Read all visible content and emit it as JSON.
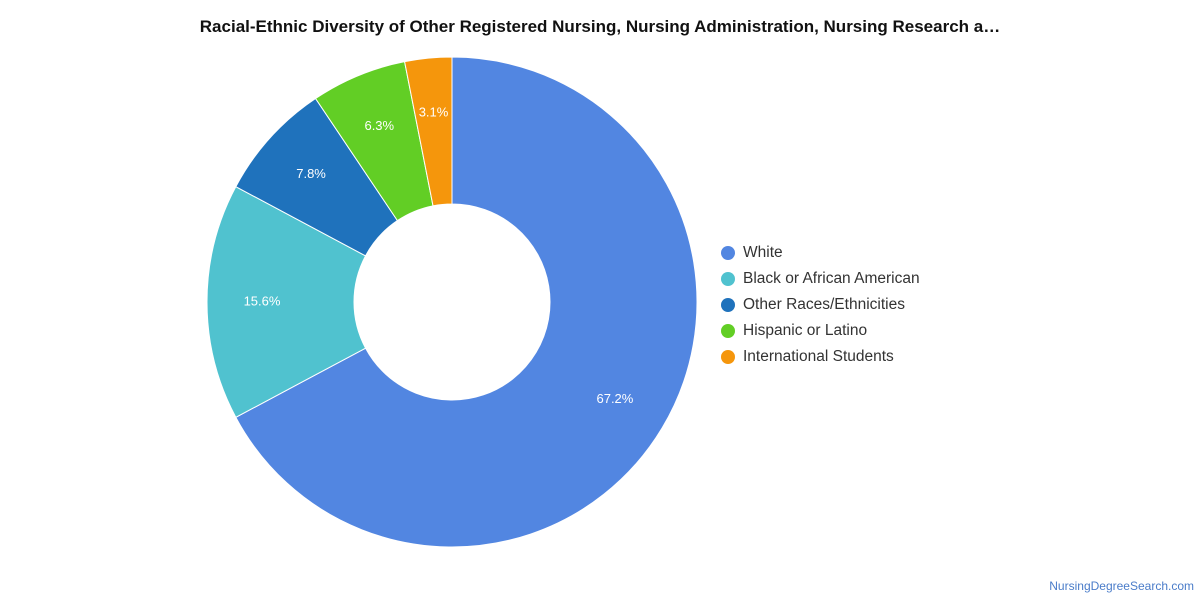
{
  "title": "Racial-Ethnic Diversity of Other Registered Nursing, Nursing Administration, Nursing Research a…",
  "source": "NursingDegreeSearch.com",
  "chart_data": {
    "type": "pie",
    "donut": true,
    "legend_position": "right",
    "categories": [
      "White",
      "Black or African American",
      "Other Races/Ethnicities",
      "Hispanic or Latino",
      "International Students"
    ],
    "values": [
      67.2,
      15.6,
      7.8,
      6.3,
      3.1
    ],
    "labels": [
      "67.2%",
      "15.6%",
      "7.8%",
      "6.3%",
      "3.1%"
    ],
    "colors": [
      "#5286e1",
      "#50c2cf",
      "#1f72bc",
      "#62ce25",
      "#f5960c"
    ]
  }
}
